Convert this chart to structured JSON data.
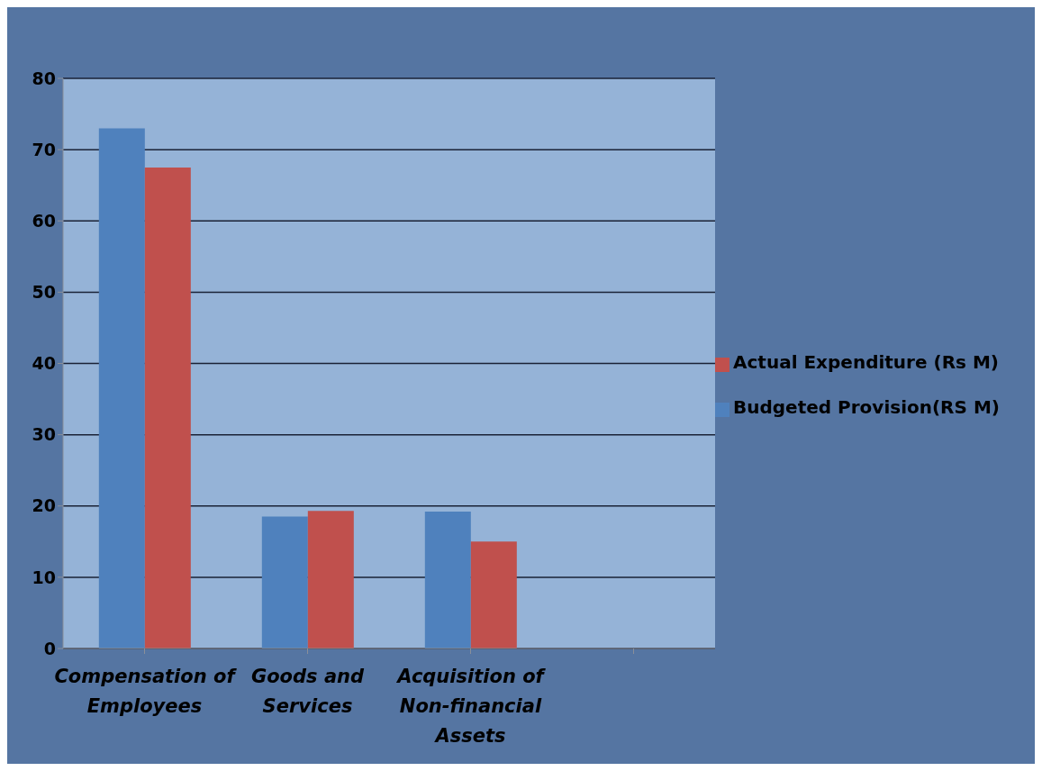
{
  "chart_data": {
    "type": "bar",
    "categories": [
      "Compensation of Employees",
      "Goods and Services",
      "Acquisition of Non-financial Assets",
      null
    ],
    "series": [
      {
        "name": "Budgeted Provision(RS M)",
        "color": "#4f81bd",
        "values": [
          73,
          18.5,
          19.2,
          null
        ]
      },
      {
        "name": "Actual Expenditure (Rs M)",
        "color": "#c0504d",
        "values": [
          67.5,
          19.3,
          15,
          null
        ]
      }
    ],
    "ylim": [
      0,
      80
    ],
    "yticks": [
      0,
      10,
      20,
      30,
      40,
      50,
      60,
      70,
      80
    ],
    "grid": "y",
    "legend": "right"
  }
}
